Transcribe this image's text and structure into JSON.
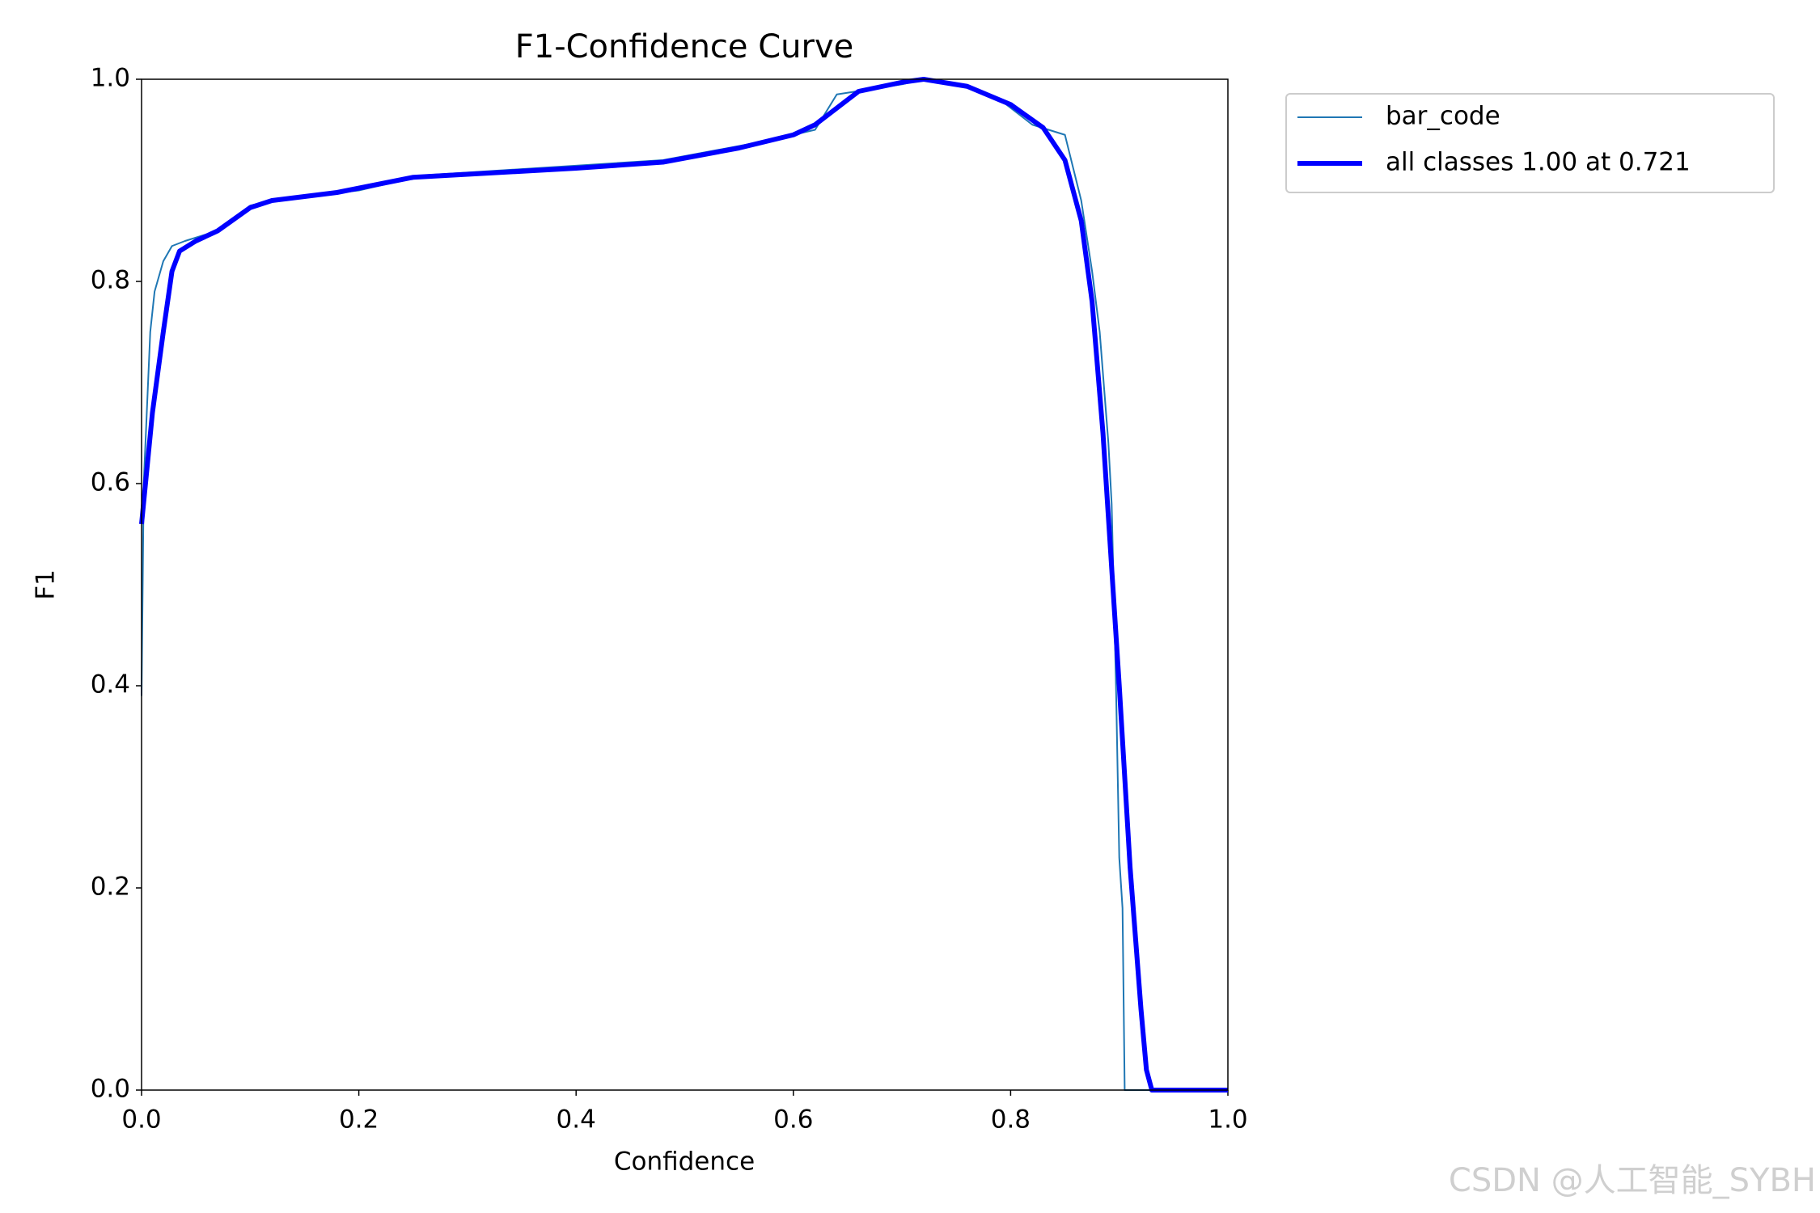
{
  "chart_data": {
    "type": "line",
    "title": "F1-Confidence Curve",
    "x_label": "Confidence",
    "y_label": "F1",
    "xlim": [
      0,
      1
    ],
    "ylim": [
      0,
      1
    ],
    "xticks": [
      {
        "value": 0,
        "label": "0.0"
      },
      0.2,
      0.4,
      0.6,
      0.8,
      {
        "value": 1,
        "label": "1.0"
      }
    ],
    "yticks": [
      {
        "value": 0,
        "label": "0.0"
      },
      0.2,
      0.4,
      0.6,
      0.8,
      {
        "value": 1,
        "label": "1.0"
      }
    ],
    "legend": "upper left outside",
    "series": [
      {
        "name": "bar_code",
        "color": "#1f77b4",
        "width": "thin",
        "x": [
          0,
          0.002,
          0.008,
          0.012,
          0.02,
          0.028,
          0.04,
          0.07,
          0.1,
          0.12,
          0.2,
          0.26,
          0.48,
          0.58,
          0.62,
          0.64,
          0.7,
          0.72,
          0.77,
          0.79,
          0.82,
          0.85,
          0.865,
          0.875,
          0.882,
          0.89,
          0.893,
          0.897,
          0.9,
          0.903,
          0.905,
          1
        ],
        "values": [
          0.39,
          0.6,
          0.75,
          0.79,
          0.82,
          0.835,
          0.84,
          0.85,
          0.875,
          0.88,
          0.89,
          0.905,
          0.92,
          0.94,
          0.95,
          0.985,
          0.995,
          1.0,
          0.99,
          0.98,
          0.955,
          0.945,
          0.88,
          0.81,
          0.75,
          0.64,
          0.58,
          0.4,
          0.23,
          0.18,
          0.0,
          0.0
        ]
      },
      {
        "name": "all classes 1.00 at 0.721",
        "color": "#0000ff",
        "width": "thick",
        "x": [
          0,
          0.01,
          0.02,
          0.028,
          0.035,
          0.05,
          0.07,
          0.1,
          0.12,
          0.18,
          0.25,
          0.3,
          0.4,
          0.48,
          0.55,
          0.6,
          0.62,
          0.66,
          0.7,
          0.72,
          0.76,
          0.8,
          0.83,
          0.85,
          0.865,
          0.875,
          0.885,
          0.9,
          0.91,
          0.92,
          0.925,
          0.93,
          1
        ],
        "values": [
          0.56,
          0.67,
          0.75,
          0.81,
          0.83,
          0.84,
          0.85,
          0.873,
          0.88,
          0.888,
          0.903,
          0.906,
          0.912,
          0.918,
          0.932,
          0.945,
          0.955,
          0.988,
          0.997,
          1.0,
          0.993,
          0.975,
          0.952,
          0.92,
          0.86,
          0.78,
          0.65,
          0.4,
          0.22,
          0.08,
          0.02,
          0.0,
          0.0
        ]
      }
    ],
    "watermark": "CSDN @人工智能_SYBH"
  }
}
